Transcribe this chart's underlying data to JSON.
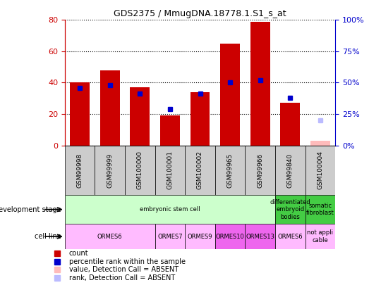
{
  "title": "GDS2375 / MmugDNA.18778.1.S1_s_at",
  "samples": [
    "GSM99998",
    "GSM99999",
    "GSM100000",
    "GSM100001",
    "GSM100002",
    "GSM99965",
    "GSM99966",
    "GSM99840",
    "GSM100004"
  ],
  "bar_heights": [
    40,
    48,
    37,
    19,
    34,
    65,
    79,
    27,
    3
  ],
  "bar_colors": [
    "#cc0000",
    "#cc0000",
    "#cc0000",
    "#cc0000",
    "#cc0000",
    "#cc0000",
    "#cc0000",
    "#cc0000",
    "#ffbbbb"
  ],
  "blue_dots_y": [
    46,
    48,
    41,
    29,
    41,
    50,
    52,
    38,
    20
  ],
  "blue_dot_absent": [
    false,
    false,
    false,
    false,
    false,
    false,
    false,
    false,
    true
  ],
  "ylim_left": [
    0,
    80
  ],
  "ylim_right": [
    0,
    100
  ],
  "y_ticks_left": [
    0,
    20,
    40,
    60,
    80
  ],
  "y_ticks_right": [
    0,
    25,
    50,
    75,
    100
  ],
  "y_tick_right_labels": [
    "0%",
    "25%",
    "50%",
    "75%",
    "100%"
  ],
  "dev_stage_groups": [
    {
      "label": "embryonic stem cell",
      "start": 0,
      "end": 7,
      "color": "#ccffcc"
    },
    {
      "label": "differentiated\nembryoid\nbodies",
      "start": 7,
      "end": 8,
      "color": "#44cc44"
    },
    {
      "label": "somatic\nfibroblast",
      "start": 8,
      "end": 9,
      "color": "#44cc44"
    }
  ],
  "cell_line_groups": [
    {
      "label": "ORMES6",
      "start": 0,
      "end": 3,
      "color": "#ffbbff"
    },
    {
      "label": "ORMES7",
      "start": 3,
      "end": 4,
      "color": "#ffbbff"
    },
    {
      "label": "ORMES9",
      "start": 4,
      "end": 5,
      "color": "#ffbbff"
    },
    {
      "label": "ORMES10",
      "start": 5,
      "end": 6,
      "color": "#ee66ee"
    },
    {
      "label": "ORMES13",
      "start": 6,
      "end": 7,
      "color": "#ee66ee"
    },
    {
      "label": "ORMES6",
      "start": 7,
      "end": 8,
      "color": "#ffbbff"
    },
    {
      "label": "not appli\ncable",
      "start": 8,
      "end": 9,
      "color": "#ffbbff"
    }
  ],
  "legend_items": [
    {
      "label": "count",
      "color": "#cc0000"
    },
    {
      "label": "percentile rank within the sample",
      "color": "#0000cc"
    },
    {
      "label": "value, Detection Call = ABSENT",
      "color": "#ffbbbb"
    },
    {
      "label": "rank, Detection Call = ABSENT",
      "color": "#bbbbff"
    }
  ],
  "background_color": "#ffffff",
  "left_axis_color": "#cc0000",
  "right_axis_color": "#0000cc",
  "grey_cell_color": "#cccccc"
}
